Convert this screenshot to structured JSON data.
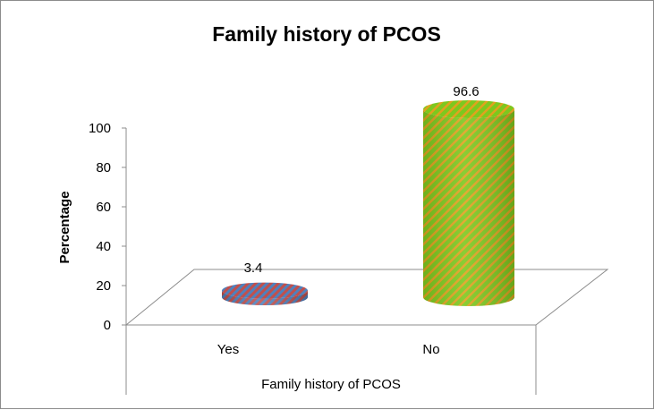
{
  "chart_data": {
    "type": "bar",
    "title": "Family history of PCOS",
    "xlabel": "Family history of PCOS",
    "ylabel": "Percentage",
    "categories": [
      "Yes",
      "No"
    ],
    "values": [
      3.4,
      96.6
    ],
    "data_labels": [
      "3.4",
      "96.6"
    ],
    "ylim": [
      0,
      100
    ],
    "yticks": [
      "0",
      "20",
      "40",
      "60",
      "80",
      "100"
    ],
    "grid": false,
    "legend": "none",
    "bar_style": "3D cylinder",
    "colors": {
      "Yes": {
        "base": "#c0504d",
        "stripe": "#4f81bd"
      },
      "No": {
        "base": "#7dc81e",
        "stripe": "#e0a21e"
      }
    }
  }
}
